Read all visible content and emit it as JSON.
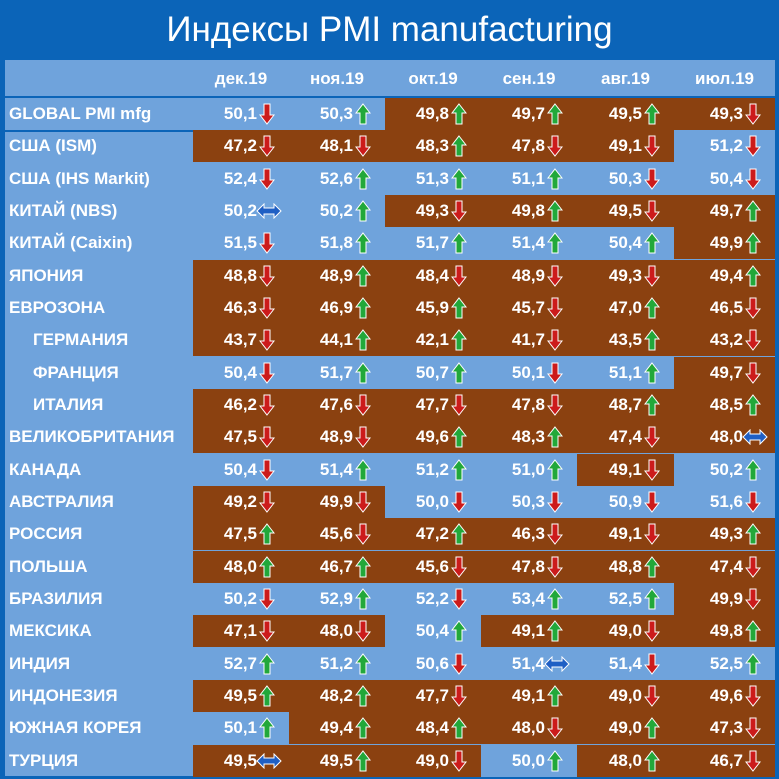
{
  "title": "Индексы PMI manufacturing",
  "colors": {
    "frame": "#0b64b8",
    "positive_bg": "#6fa3dc",
    "negative_bg": "#8b4110",
    "arrow_up": "#22a83a",
    "arrow_down": "#cc1b1b",
    "arrow_flat": "#1f5fc4",
    "text": "#ffffff"
  },
  "chart_data": {
    "type": "table",
    "title": "Индексы PMI manufacturing",
    "columns": [
      "дек.19",
      "ноя.19",
      "окт.19",
      "сен.19",
      "авг.19",
      "июл.19"
    ],
    "rows": [
      {
        "label": "GLOBAL PMI mfg",
        "indent": false,
        "values": [
          "50,1",
          "50,3",
          "49,8",
          "49,7",
          "49,5",
          "49,3"
        ],
        "trend": [
          "down",
          "up",
          "up",
          "up",
          "up",
          "down"
        ],
        "bg": [
          "pos",
          "pos",
          "neg",
          "neg",
          "neg",
          "neg"
        ]
      },
      {
        "label": "США (ISM)",
        "indent": false,
        "values": [
          "47,2",
          "48,1",
          "48,3",
          "47,8",
          "49,1",
          "51,2"
        ],
        "trend": [
          "down",
          "down",
          "up",
          "down",
          "down",
          "down"
        ],
        "bg": [
          "neg",
          "neg",
          "neg",
          "neg",
          "neg",
          "pos"
        ]
      },
      {
        "label": "США (IHS Markit)",
        "indent": false,
        "values": [
          "52,4",
          "52,6",
          "51,3",
          "51,1",
          "50,3",
          "50,4"
        ],
        "trend": [
          "down",
          "up",
          "up",
          "up",
          "down",
          "down"
        ],
        "bg": [
          "pos",
          "pos",
          "pos",
          "pos",
          "pos",
          "pos"
        ]
      },
      {
        "label": "КИТАЙ (NBS)",
        "indent": false,
        "values": [
          "50,2",
          "50,2",
          "49,3",
          "49,8",
          "49,5",
          "49,7"
        ],
        "trend": [
          "flat",
          "up",
          "down",
          "up",
          "down",
          "up"
        ],
        "bg": [
          "pos",
          "pos",
          "neg",
          "neg",
          "neg",
          "neg"
        ]
      },
      {
        "label": "КИТАЙ (Caixin)",
        "indent": false,
        "values": [
          "51,5",
          "51,8",
          "51,7",
          "51,4",
          "50,4",
          "49,9"
        ],
        "trend": [
          "down",
          "up",
          "up",
          "up",
          "up",
          "up"
        ],
        "bg": [
          "pos",
          "pos",
          "pos",
          "pos",
          "pos",
          "neg"
        ]
      },
      {
        "label": "ЯПОНИЯ",
        "indent": false,
        "values": [
          "48,8",
          "48,9",
          "48,4",
          "48,9",
          "49,3",
          "49,4"
        ],
        "trend": [
          "down",
          "up",
          "down",
          "down",
          "down",
          "up"
        ],
        "bg": [
          "neg",
          "neg",
          "neg",
          "neg",
          "neg",
          "neg"
        ]
      },
      {
        "label": "ЕВРОЗОНА",
        "indent": false,
        "values": [
          "46,3",
          "46,9",
          "45,9",
          "45,7",
          "47,0",
          "46,5"
        ],
        "trend": [
          "down",
          "up",
          "up",
          "down",
          "up",
          "down"
        ],
        "bg": [
          "neg",
          "neg",
          "neg",
          "neg",
          "neg",
          "neg"
        ]
      },
      {
        "label": "ГЕРМАНИЯ",
        "indent": true,
        "values": [
          "43,7",
          "44,1",
          "42,1",
          "41,7",
          "43,5",
          "43,2"
        ],
        "trend": [
          "down",
          "up",
          "up",
          "down",
          "up",
          "down"
        ],
        "bg": [
          "neg",
          "neg",
          "neg",
          "neg",
          "neg",
          "neg"
        ]
      },
      {
        "label": "ФРАНЦИЯ",
        "indent": true,
        "values": [
          "50,4",
          "51,7",
          "50,7",
          "50,1",
          "51,1",
          "49,7"
        ],
        "trend": [
          "down",
          "up",
          "up",
          "down",
          "up",
          "down"
        ],
        "bg": [
          "pos",
          "pos",
          "pos",
          "pos",
          "pos",
          "neg"
        ]
      },
      {
        "label": "ИТАЛИЯ",
        "indent": true,
        "values": [
          "46,2",
          "47,6",
          "47,7",
          "47,8",
          "48,7",
          "48,5"
        ],
        "trend": [
          "down",
          "down",
          "down",
          "down",
          "up",
          "up"
        ],
        "bg": [
          "neg",
          "neg",
          "neg",
          "neg",
          "neg",
          "neg"
        ]
      },
      {
        "label": "ВЕЛИКОБРИТАНИЯ",
        "indent": false,
        "values": [
          "47,5",
          "48,9",
          "49,6",
          "48,3",
          "47,4",
          "48,0"
        ],
        "trend": [
          "down",
          "down",
          "up",
          "up",
          "down",
          "flat"
        ],
        "bg": [
          "neg",
          "neg",
          "neg",
          "neg",
          "neg",
          "neg"
        ]
      },
      {
        "label": "КАНАДА",
        "indent": false,
        "values": [
          "50,4",
          "51,4",
          "51,2",
          "51,0",
          "49,1",
          "50,2"
        ],
        "trend": [
          "down",
          "up",
          "up",
          "up",
          "down",
          "up"
        ],
        "bg": [
          "pos",
          "pos",
          "pos",
          "pos",
          "neg",
          "pos"
        ]
      },
      {
        "label": "АВСТРАЛИЯ",
        "indent": false,
        "values": [
          "49,2",
          "49,9",
          "50,0",
          "50,3",
          "50,9",
          "51,6"
        ],
        "trend": [
          "down",
          "down",
          "down",
          "down",
          "down",
          "down"
        ],
        "bg": [
          "neg",
          "neg",
          "pos",
          "pos",
          "pos",
          "pos"
        ]
      },
      {
        "label": "РОССИЯ",
        "indent": false,
        "values": [
          "47,5",
          "45,6",
          "47,2",
          "46,3",
          "49,1",
          "49,3"
        ],
        "trend": [
          "up",
          "down",
          "up",
          "down",
          "down",
          "up"
        ],
        "bg": [
          "neg",
          "neg",
          "neg",
          "neg",
          "neg",
          "neg"
        ]
      },
      {
        "label": "ПОЛЬША",
        "indent": false,
        "values": [
          "48,0",
          "46,7",
          "45,6",
          "47,8",
          "48,8",
          "47,4"
        ],
        "trend": [
          "up",
          "up",
          "down",
          "down",
          "up",
          "down"
        ],
        "bg": [
          "neg",
          "neg",
          "neg",
          "neg",
          "neg",
          "neg"
        ]
      },
      {
        "label": "БРАЗИЛИЯ",
        "indent": false,
        "values": [
          "50,2",
          "52,9",
          "52,2",
          "53,4",
          "52,5",
          "49,9"
        ],
        "trend": [
          "down",
          "up",
          "down",
          "up",
          "up",
          "down"
        ],
        "bg": [
          "pos",
          "pos",
          "pos",
          "pos",
          "pos",
          "neg"
        ]
      },
      {
        "label": "МЕКСИКА",
        "indent": false,
        "values": [
          "47,1",
          "48,0",
          "50,4",
          "49,1",
          "49,0",
          "49,8"
        ],
        "trend": [
          "down",
          "down",
          "up",
          "up",
          "down",
          "up"
        ],
        "bg": [
          "neg",
          "neg",
          "pos",
          "neg",
          "neg",
          "neg"
        ]
      },
      {
        "label": "ИНДИЯ",
        "indent": false,
        "values": [
          "52,7",
          "51,2",
          "50,6",
          "51,4",
          "51,4",
          "52,5"
        ],
        "trend": [
          "up",
          "up",
          "down",
          "flat",
          "down",
          "up"
        ],
        "bg": [
          "pos",
          "pos",
          "pos",
          "pos",
          "pos",
          "pos"
        ]
      },
      {
        "label": "ИНДОНЕЗИЯ",
        "indent": false,
        "values": [
          "49,5",
          "48,2",
          "47,7",
          "49,1",
          "49,0",
          "49,6"
        ],
        "trend": [
          "up",
          "up",
          "down",
          "up",
          "down",
          "down"
        ],
        "bg": [
          "neg",
          "neg",
          "neg",
          "neg",
          "neg",
          "neg"
        ]
      },
      {
        "label": "ЮЖНАЯ КОРЕЯ",
        "indent": false,
        "values": [
          "50,1",
          "49,4",
          "48,4",
          "48,0",
          "49,0",
          "47,3"
        ],
        "trend": [
          "up",
          "up",
          "up",
          "down",
          "up",
          "down"
        ],
        "bg": [
          "pos",
          "neg",
          "neg",
          "neg",
          "neg",
          "neg"
        ]
      },
      {
        "label": "ТУРЦИЯ",
        "indent": false,
        "values": [
          "49,5",
          "49,5",
          "49,0",
          "50,0",
          "48,0",
          "46,7"
        ],
        "trend": [
          "flat",
          "up",
          "down",
          "up",
          "up",
          "down"
        ],
        "bg": [
          "neg",
          "neg",
          "neg",
          "pos",
          "neg",
          "neg"
        ]
      }
    ]
  }
}
